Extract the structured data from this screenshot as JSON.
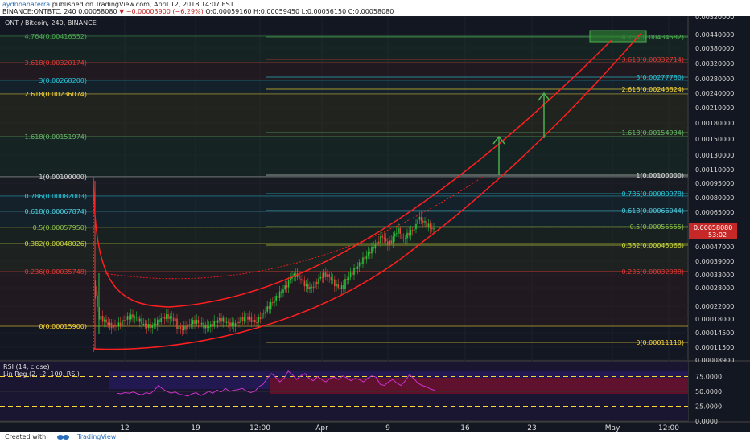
{
  "header": {
    "author": "aydnbahaterra",
    "published": "published on TradingView.com, April 12, 2018 14:07 EST",
    "symbol": "BINANCE:ONTBTC, 240",
    "last": "0.00058080",
    "change_arrow": "▼",
    "change": "−0.00003900 (−6.29%)",
    "ohlc": "O:0.00059160 H:0.00059450 L:0.00056150 C:0.00058080"
  },
  "chart_title": "ONT / Bitcoin, 240, BINANCE",
  "footer": {
    "created": "Created with",
    "brand": "TradingView"
  },
  "colors": {
    "background": "#131722",
    "candle_up": "#26c33a",
    "candle_down": "#e8453c",
    "channel": "#ff1f1f",
    "rsi_line": "#cc33cc",
    "price_tag": "#c62828"
  },
  "chart_data": {
    "type": "candlestick",
    "price_axis_labels": [
      "0.00520000",
      "0.00440000",
      "0.00380000",
      "0.00320000",
      "0.00280000",
      "0.00240000",
      "0.00210000",
      "0.00180000",
      "0.00150000",
      "0.00130000",
      "0.00110000",
      "0.00095000",
      "0.00080000",
      "0.00065000",
      "0.00058080",
      "0.00047000",
      "0.00039000",
      "0.00033000",
      "0.00028000",
      "0.00022000",
      "0.00018000",
      "0.00014500",
      "0.00011500",
      "0.00008900"
    ],
    "price_tag": {
      "value": "0.00058080",
      "countdown": "53:02"
    },
    "x_axis_labels": [
      "12",
      "19",
      "12:00",
      "Apr",
      "9",
      "16",
      "23",
      "May",
      "12:00"
    ],
    "fib_left": [
      {
        "label": "4.764(0.00416552)",
        "color": "#4caf50"
      },
      {
        "label": "3.618(0.00320174)",
        "color": "#e53935"
      },
      {
        "label": "3(0.00268200)",
        "color": "#26c6da"
      },
      {
        "label": "2.618(0.00236074)",
        "color": "#fdd835"
      },
      {
        "label": "1.618(0.00151974)",
        "color": "#66bb6a"
      },
      {
        "label": "1(0.00100000)",
        "color": "#dddddd"
      },
      {
        "label": "0.786(0.00082003)",
        "color": "#26c6da"
      },
      {
        "label": "0.618(0.00067874)",
        "color": "#4dd0e1"
      },
      {
        "label": "0.5(0.00057950)",
        "color": "#8bc34a"
      },
      {
        "label": "0.382(0.00048026)",
        "color": "#cddc39"
      },
      {
        "label": "0.236(0.00035748)",
        "color": "#e53935"
      },
      {
        "label": "0(0.00015900)",
        "color": "#fdd835"
      }
    ],
    "fib_right": [
      {
        "label": "4.764(0.00434582)",
        "color": "#4caf50"
      },
      {
        "label": "3.618(0.00332714)",
        "color": "#e53935"
      },
      {
        "label": "3(0.00277780)",
        "color": "#26c6da"
      },
      {
        "label": "2.618(0.00243824)",
        "color": "#fdd835"
      },
      {
        "label": "1.618(0.00154934)",
        "color": "#66bb6a"
      },
      {
        "label": "1(0.00100000)",
        "color": "#dddddd"
      },
      {
        "label": "0.786(0.00080978)",
        "color": "#26c6da"
      },
      {
        "label": "0.618(0.00066044)",
        "color": "#4dd0e1"
      },
      {
        "label": "0.5(0.00055555)",
        "color": "#8bc34a"
      },
      {
        "label": "0.382(0.00045066)",
        "color": "#cddc39"
      },
      {
        "label": "0.236(0.00032088)",
        "color": "#e53935"
      },
      {
        "label": "0(0.00011110)",
        "color": "#fdd835"
      }
    ],
    "rsi": {
      "label": "RSI (14, close)",
      "linreg_label": "Lin Reg (2, -2, 100, RSI)",
      "axis_labels": [
        "75.0000",
        "50.0000",
        "25.0000",
        "0.0000"
      ],
      "values": [
        47,
        46,
        48,
        47,
        49,
        46,
        44,
        48,
        46,
        52,
        60,
        54,
        50,
        47,
        49,
        45,
        44,
        42,
        46,
        48,
        43,
        46,
        50,
        47,
        52,
        49,
        55,
        50,
        52,
        53,
        55,
        51,
        48,
        50,
        58,
        62,
        72,
        80,
        74,
        66,
        72,
        84,
        78,
        70,
        76,
        80,
        72,
        68,
        75,
        70,
        66,
        72,
        74,
        70,
        76,
        73,
        68,
        72,
        70,
        66,
        72,
        76,
        74,
        62,
        60,
        66,
        70,
        64,
        60,
        68,
        78,
        72,
        64,
        60,
        58,
        54,
        52
      ]
    }
  }
}
